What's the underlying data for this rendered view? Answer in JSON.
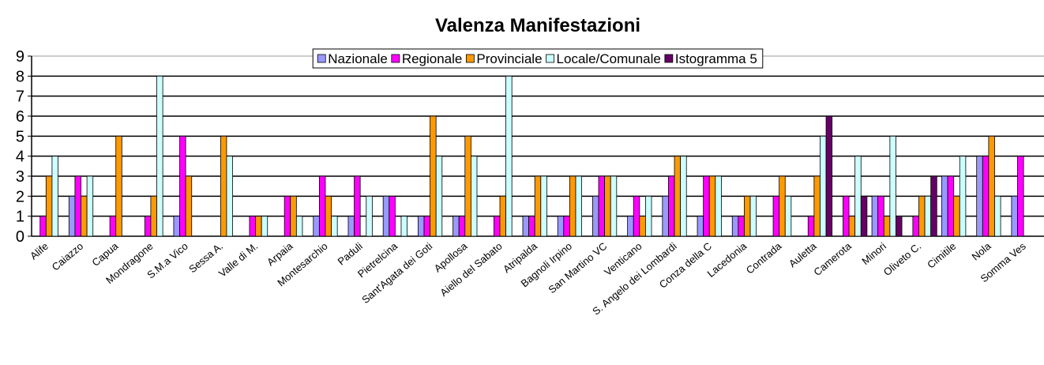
{
  "chart_data": {
    "type": "bar",
    "title": "Valenza Manifestazioni",
    "categories": [
      "Alife",
      "Caiazzo",
      "Capua",
      "Mondragone",
      "S.M.a Vico",
      "Sessa A.",
      "Valle di M.",
      "Arpaia",
      "Montesarchio",
      "Paduli",
      "Pietrelcina",
      "Sant'Agata dei Goti",
      "Apollosa",
      "Aiello del Sabato",
      "Atripalda",
      "Bagnoli Irpino",
      "San Martino VC",
      "Venticano",
      "S. Angelo dei Lombardi",
      "Conza della C",
      "Lacedonia",
      "Contrada",
      "Auletta",
      "Camerota",
      "Minori",
      "Oliveto C.",
      "Cimitile",
      "Nola",
      "Somma Ves"
    ],
    "series": [
      {
        "name": "Nazionale",
        "color": "#9999ff",
        "values": [
          0,
          2,
          0,
          0,
          1,
          0,
          0,
          0,
          1,
          1,
          2,
          1,
          1,
          0,
          1,
          1,
          2,
          1,
          2,
          1,
          1,
          0,
          0,
          0,
          2,
          0,
          3,
          4,
          2
        ]
      },
      {
        "name": "Regionale",
        "color": "#ff00ff",
        "values": [
          1,
          3,
          1,
          1,
          5,
          0,
          1,
          2,
          3,
          3,
          2,
          1,
          1,
          1,
          1,
          1,
          3,
          2,
          3,
          3,
          1,
          2,
          1,
          2,
          2,
          1,
          3,
          4,
          4
        ]
      },
      {
        "name": "Provinciale",
        "color": "#ff9900",
        "values": [
          3,
          2,
          5,
          2,
          3,
          5,
          1,
          2,
          2,
          0,
          0,
          6,
          5,
          2,
          3,
          3,
          3,
          1,
          4,
          3,
          2,
          3,
          3,
          1,
          1,
          2,
          2,
          5,
          0
        ]
      },
      {
        "name": "Locale/Comunale",
        "color": "#ccffff",
        "values": [
          4,
          3,
          0,
          8,
          0,
          4,
          1,
          1,
          1,
          2,
          1,
          4,
          4,
          8,
          3,
          3,
          3,
          2,
          4,
          3,
          2,
          2,
          5,
          4,
          5,
          2,
          4,
          2,
          0
        ]
      },
      {
        "name": "Istogramma 5",
        "color": "#660066",
        "values": [
          0,
          0,
          0,
          0,
          0,
          0,
          0,
          0,
          0,
          0,
          0,
          0,
          0,
          0,
          0,
          0,
          0,
          0,
          0,
          0,
          0,
          0,
          6,
          2,
          1,
          3,
          0,
          0,
          0
        ]
      }
    ],
    "ylim": [
      0,
      9
    ],
    "yticks": [
      0,
      1,
      2,
      3,
      4,
      5,
      6,
      7,
      8,
      9
    ],
    "grid": true,
    "legend": "top"
  }
}
